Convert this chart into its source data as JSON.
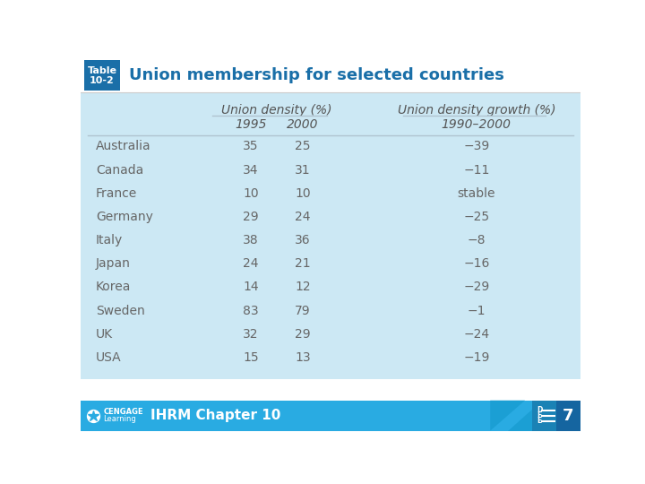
{
  "title": "Union membership for selected countries",
  "table_label_line1": "Table",
  "table_label_line2": "10-2",
  "header1": "Union density (%)",
  "header2": "Union density growth (%)",
  "subheader1": "1995",
  "subheader2": "2000",
  "subheader3": "1990–2000",
  "countries": [
    "Australia",
    "Canada",
    "France",
    "Germany",
    "Italy",
    "Japan",
    "Korea",
    "Sweden",
    "UK",
    "USA"
  ],
  "col1995": [
    "35",
    "34",
    "10",
    "29",
    "38",
    "24",
    "14",
    "83",
    "32",
    "15"
  ],
  "col2000": [
    "25",
    "31",
    "10",
    "24",
    "36",
    "21",
    "12",
    "79",
    "29",
    "13"
  ],
  "col_growth": [
    "−39",
    "−11",
    "stable",
    "−25",
    "−8",
    "−16",
    "−29",
    "−1",
    "−24",
    "−19"
  ],
  "footer_text": "IHRM Chapter 10",
  "footer_number": "7",
  "bg_white": "#ffffff",
  "bg_light_blue": "#cce8f4",
  "badge_bg": "#1a6fa8",
  "title_color": "#1a6fa8",
  "footer_bg": "#29abe2",
  "footer_dark": "#1a82b5",
  "footer_darker": "#1565a0",
  "footer_text_color": "#ffffff",
  "body_text_color": "#666666",
  "header_text_color": "#555555",
  "line_color": "#b0c4d0"
}
